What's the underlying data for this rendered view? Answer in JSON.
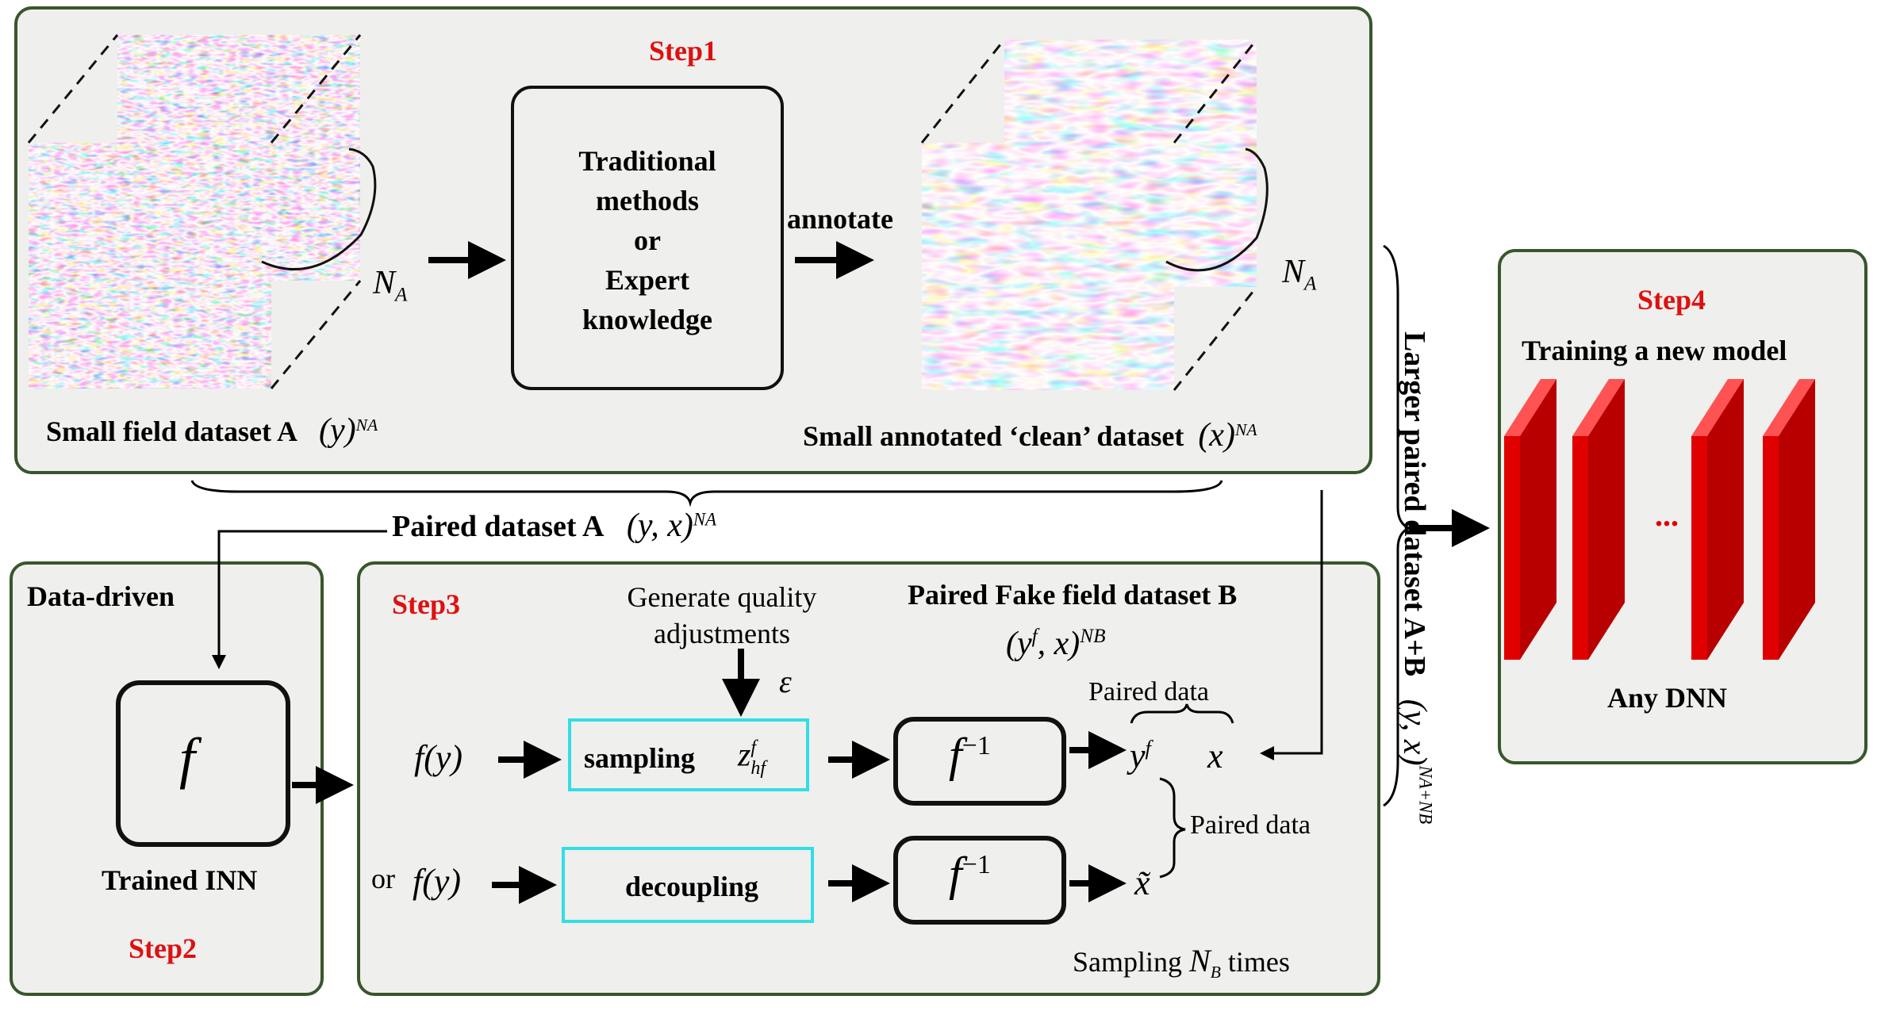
{
  "steps": {
    "step1": "Step1",
    "step2": "Step2",
    "step3": "Step3",
    "step4": "Step4"
  },
  "step1": {
    "traditional_box": [
      "Traditional",
      "methods",
      "or",
      "Expert",
      "knowledge"
    ],
    "annotate_label": "annotate",
    "count_label": "N",
    "count_sub": "A",
    "dataset_a_label": "Small field dataset  A",
    "dataset_a_math": "(y)",
    "clean_label": "Small annotated   ‘clean’   dataset",
    "clean_math": "(x)",
    "exp_label": "NA"
  },
  "paired_a": {
    "label": "Paired dataset A",
    "math": "(y, x)",
    "exp": "NA"
  },
  "step2": {
    "heading": "Data-driven",
    "func": "f",
    "caption": "Trained INN"
  },
  "step3": {
    "quality_line1": "Generate quality",
    "quality_line2": "adjustments",
    "epsilon": "ε",
    "fake_title": "Paired Fake field dataset B",
    "fake_math": "(y",
    "fake_math_sup": "f",
    "fake_math_tail": ", x)",
    "fake_exp": "NB",
    "f_of_y": "f(y)",
    "or_label": "or",
    "sampling_label": "sampling",
    "z_label": "z",
    "z_sup": "f",
    "z_sub": "hf",
    "decoupling_label": "decoupling",
    "f_inv": "f",
    "f_inv_exp": "−1",
    "paired_data_top": "Paired data",
    "paired_data_right": "Paired data",
    "y_f": "y",
    "y_f_sup": "f",
    "x_label": "x",
    "x_tilde": "x̃",
    "sampling_times_prefix": "Sampling ",
    "sampling_times_n": "N",
    "sampling_times_sub": "B",
    "sampling_times_suffix": " times"
  },
  "larger": {
    "label": "Larger paired dataset   A+B",
    "math": "(y, x)",
    "exp": "NA+NB"
  },
  "step4": {
    "title": "Training a new model",
    "ellipsis": "...",
    "caption": "Any DNN"
  },
  "colors": {
    "panel_border": "#38562b",
    "panel_fill": "#efefed",
    "step_red": "#dd1111",
    "cyan_box": "#33dde6",
    "layer_red": "#cc0000",
    "layer_top": "#ff5555",
    "seismic_red": "#d93a3a",
    "seismic_blue": "#2a3fbf"
  },
  "icons": [
    "arrow-right-icon",
    "arrow-down-icon",
    "arrow-left-icon",
    "brace-icon"
  ]
}
